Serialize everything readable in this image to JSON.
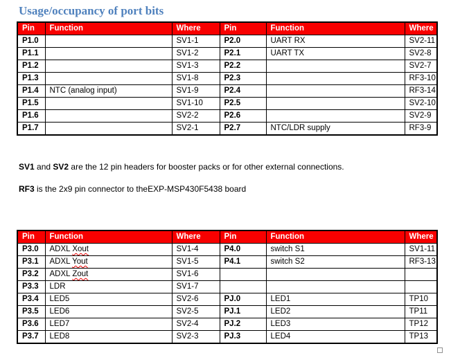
{
  "page": {
    "title": "Usage/occupancy of port bits"
  },
  "colors": {
    "title": "#4F81BD",
    "header_bg": "#F80000",
    "header_text": "#FFFFFF",
    "squiggle": "#E60000"
  },
  "misspelled_words": [
    "Xout",
    "Yout",
    "Zout"
  ],
  "tables": [
    {
      "name": "port-bits-p1-p2",
      "headers": [
        "Pin",
        "Function",
        "Where",
        "Pin",
        "Function",
        "Where"
      ],
      "rows": [
        [
          "P1.0",
          "",
          "SV1-1",
          "P2.0",
          "UART RX",
          "SV2-11"
        ],
        [
          "P1.1",
          "",
          "SV1-2",
          "P2.1",
          "UART TX",
          "SV2-8"
        ],
        [
          "P1.2",
          "",
          "SV1-3",
          "P2.2",
          "",
          "SV2-7"
        ],
        [
          "P1.3",
          "",
          "SV1-8",
          "P2.3",
          "",
          "RF3-10"
        ],
        [
          "P1.4",
          "NTC (analog input)",
          "SV1-9",
          "P2.4",
          "",
          "RF3-14"
        ],
        [
          "P1.5",
          "",
          "SV1-10",
          "P2.5",
          "",
          "SV2-10"
        ],
        [
          "P1.6",
          "",
          "SV2-2",
          "P2.6",
          "",
          "SV2-9"
        ],
        [
          "P1.7",
          "",
          "SV2-1",
          "P2.7",
          "NTC/LDR supply",
          "RF3-9"
        ]
      ]
    },
    {
      "name": "port-bits-p3-p4-pj",
      "headers": [
        "Pin",
        "Function",
        "Where",
        "Pin",
        "Function",
        "Where"
      ],
      "rows": [
        [
          "P3.0",
          "ADXL Xout",
          "SV1-4",
          "P4.0",
          "switch S1",
          "SV1-11"
        ],
        [
          "P3.1",
          "ADXL Yout",
          "SV1-5",
          "P4.1",
          "switch S2",
          "RF3-13"
        ],
        [
          "P3.2",
          "ADXL Zout",
          "SV1-6",
          "",
          "",
          ""
        ],
        [
          "P3.3",
          "LDR",
          "SV1-7",
          "",
          "",
          ""
        ],
        [
          "P3.4",
          "LED5",
          "SV2-6",
          "PJ.0",
          "LED1",
          "TP10"
        ],
        [
          "P3.5",
          "LED6",
          "SV2-5",
          "PJ.1",
          "LED2",
          "TP11"
        ],
        [
          "P3.6",
          "LED7",
          "SV2-4",
          "PJ.2",
          "LED3",
          "TP12"
        ],
        [
          "P3.7",
          "LED8",
          "SV2-3",
          "PJ.3",
          "LED4",
          "TP13"
        ]
      ]
    }
  ],
  "notes": {
    "sv": {
      "bold1": "SV1",
      "sep1": " and ",
      "bold2": "SV2",
      "rest": " are the 12 pin headers for booster packs or for other external connections."
    },
    "rf": {
      "bold": "RF3",
      "rest": " is the 2x9 pin connector to theEXP-MSP430F5438 board"
    }
  }
}
